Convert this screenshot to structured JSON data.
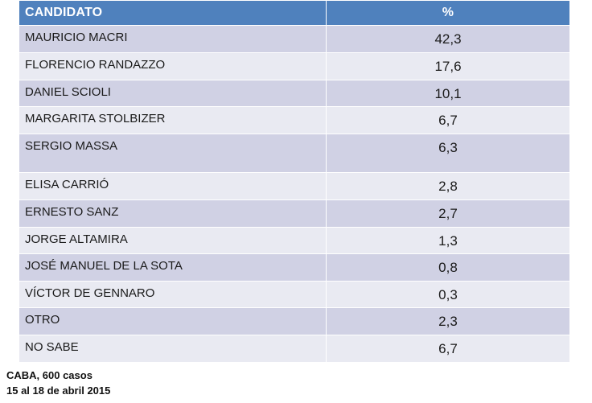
{
  "table": {
    "headers": [
      "CANDIDATO",
      "%"
    ],
    "rows": [
      {
        "name": "MAURICIO MACRI",
        "value": "42,3"
      },
      {
        "name": "FLORENCIO RANDAZZO",
        "value": "17,6"
      },
      {
        "name": "DANIEL SCIOLI",
        "value": "10,1"
      },
      {
        "name": "MARGARITA STOLBIZER",
        "value": "6,7"
      },
      {
        "name": "SERGIO MASSA",
        "value": "6,3"
      },
      {
        "name": "ELISA CARRIÓ",
        "value": "2,8"
      },
      {
        "name": "ERNESTO SANZ",
        "value": "2,7"
      },
      {
        "name": "JORGE ALTAMIRA",
        "value": "1,3"
      },
      {
        "name": "JOSÉ MANUEL DE LA SOTA",
        "value": "0,8"
      },
      {
        "name": "VÍCTOR DE GENNARO",
        "value": "0,3"
      },
      {
        "name": "OTRO",
        "value": "2,3"
      },
      {
        "name": "NO SABE",
        "value": "6,7"
      }
    ]
  },
  "footer": {
    "line1": "CABA, 600 casos",
    "line2": "15 al 18 de abril 2015"
  },
  "colors": {
    "header": "#4f81bd",
    "row_dark": "#d0d1e4",
    "row_light": "#e9eaf2"
  }
}
